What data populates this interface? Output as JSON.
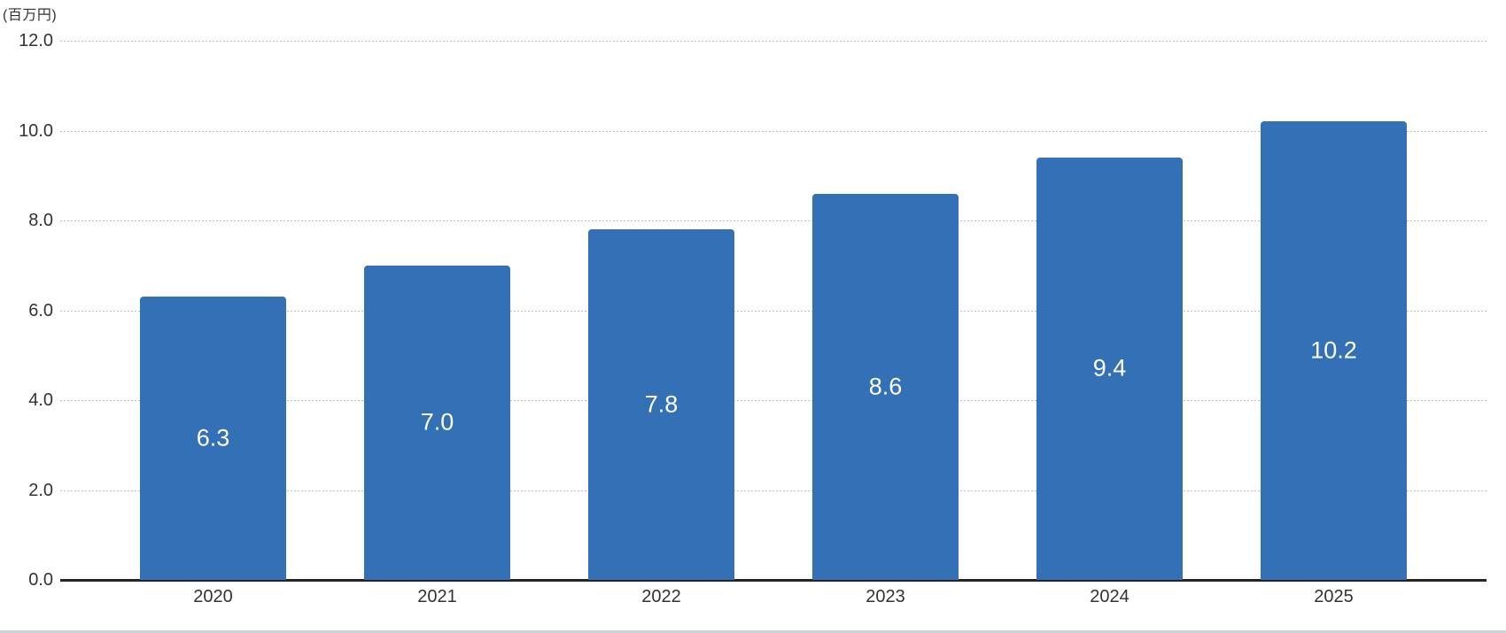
{
  "chart_data": {
    "type": "bar",
    "title": "",
    "unit_label": "(百万円)",
    "categories": [
      "2020",
      "2021",
      "2022",
      "2023",
      "2024",
      "2025"
    ],
    "values": [
      6.3,
      7.0,
      7.8,
      8.6,
      9.4,
      10.2
    ],
    "bar_labels": [
      "6.3",
      "7.0",
      "7.8",
      "8.6",
      "9.4",
      "10.2"
    ],
    "y_ticks": [
      "0.0",
      "2.0",
      "4.0",
      "6.0",
      "8.0",
      "10.0",
      "12.0"
    ],
    "y_tick_values": [
      0,
      2,
      4,
      6,
      8,
      10,
      12
    ],
    "ylim": [
      0,
      12
    ],
    "xlabel": "",
    "ylabel": "(百万円)",
    "grid": true,
    "legend_position": "none",
    "bar_color": "#3470B5",
    "bar_label_color": "#ffffff",
    "gridline_color": "#b9c1cc",
    "axis_line_color": "#242424",
    "tick_label_color": "#333333",
    "bottom_strip_color": "#cbd3d8"
  }
}
